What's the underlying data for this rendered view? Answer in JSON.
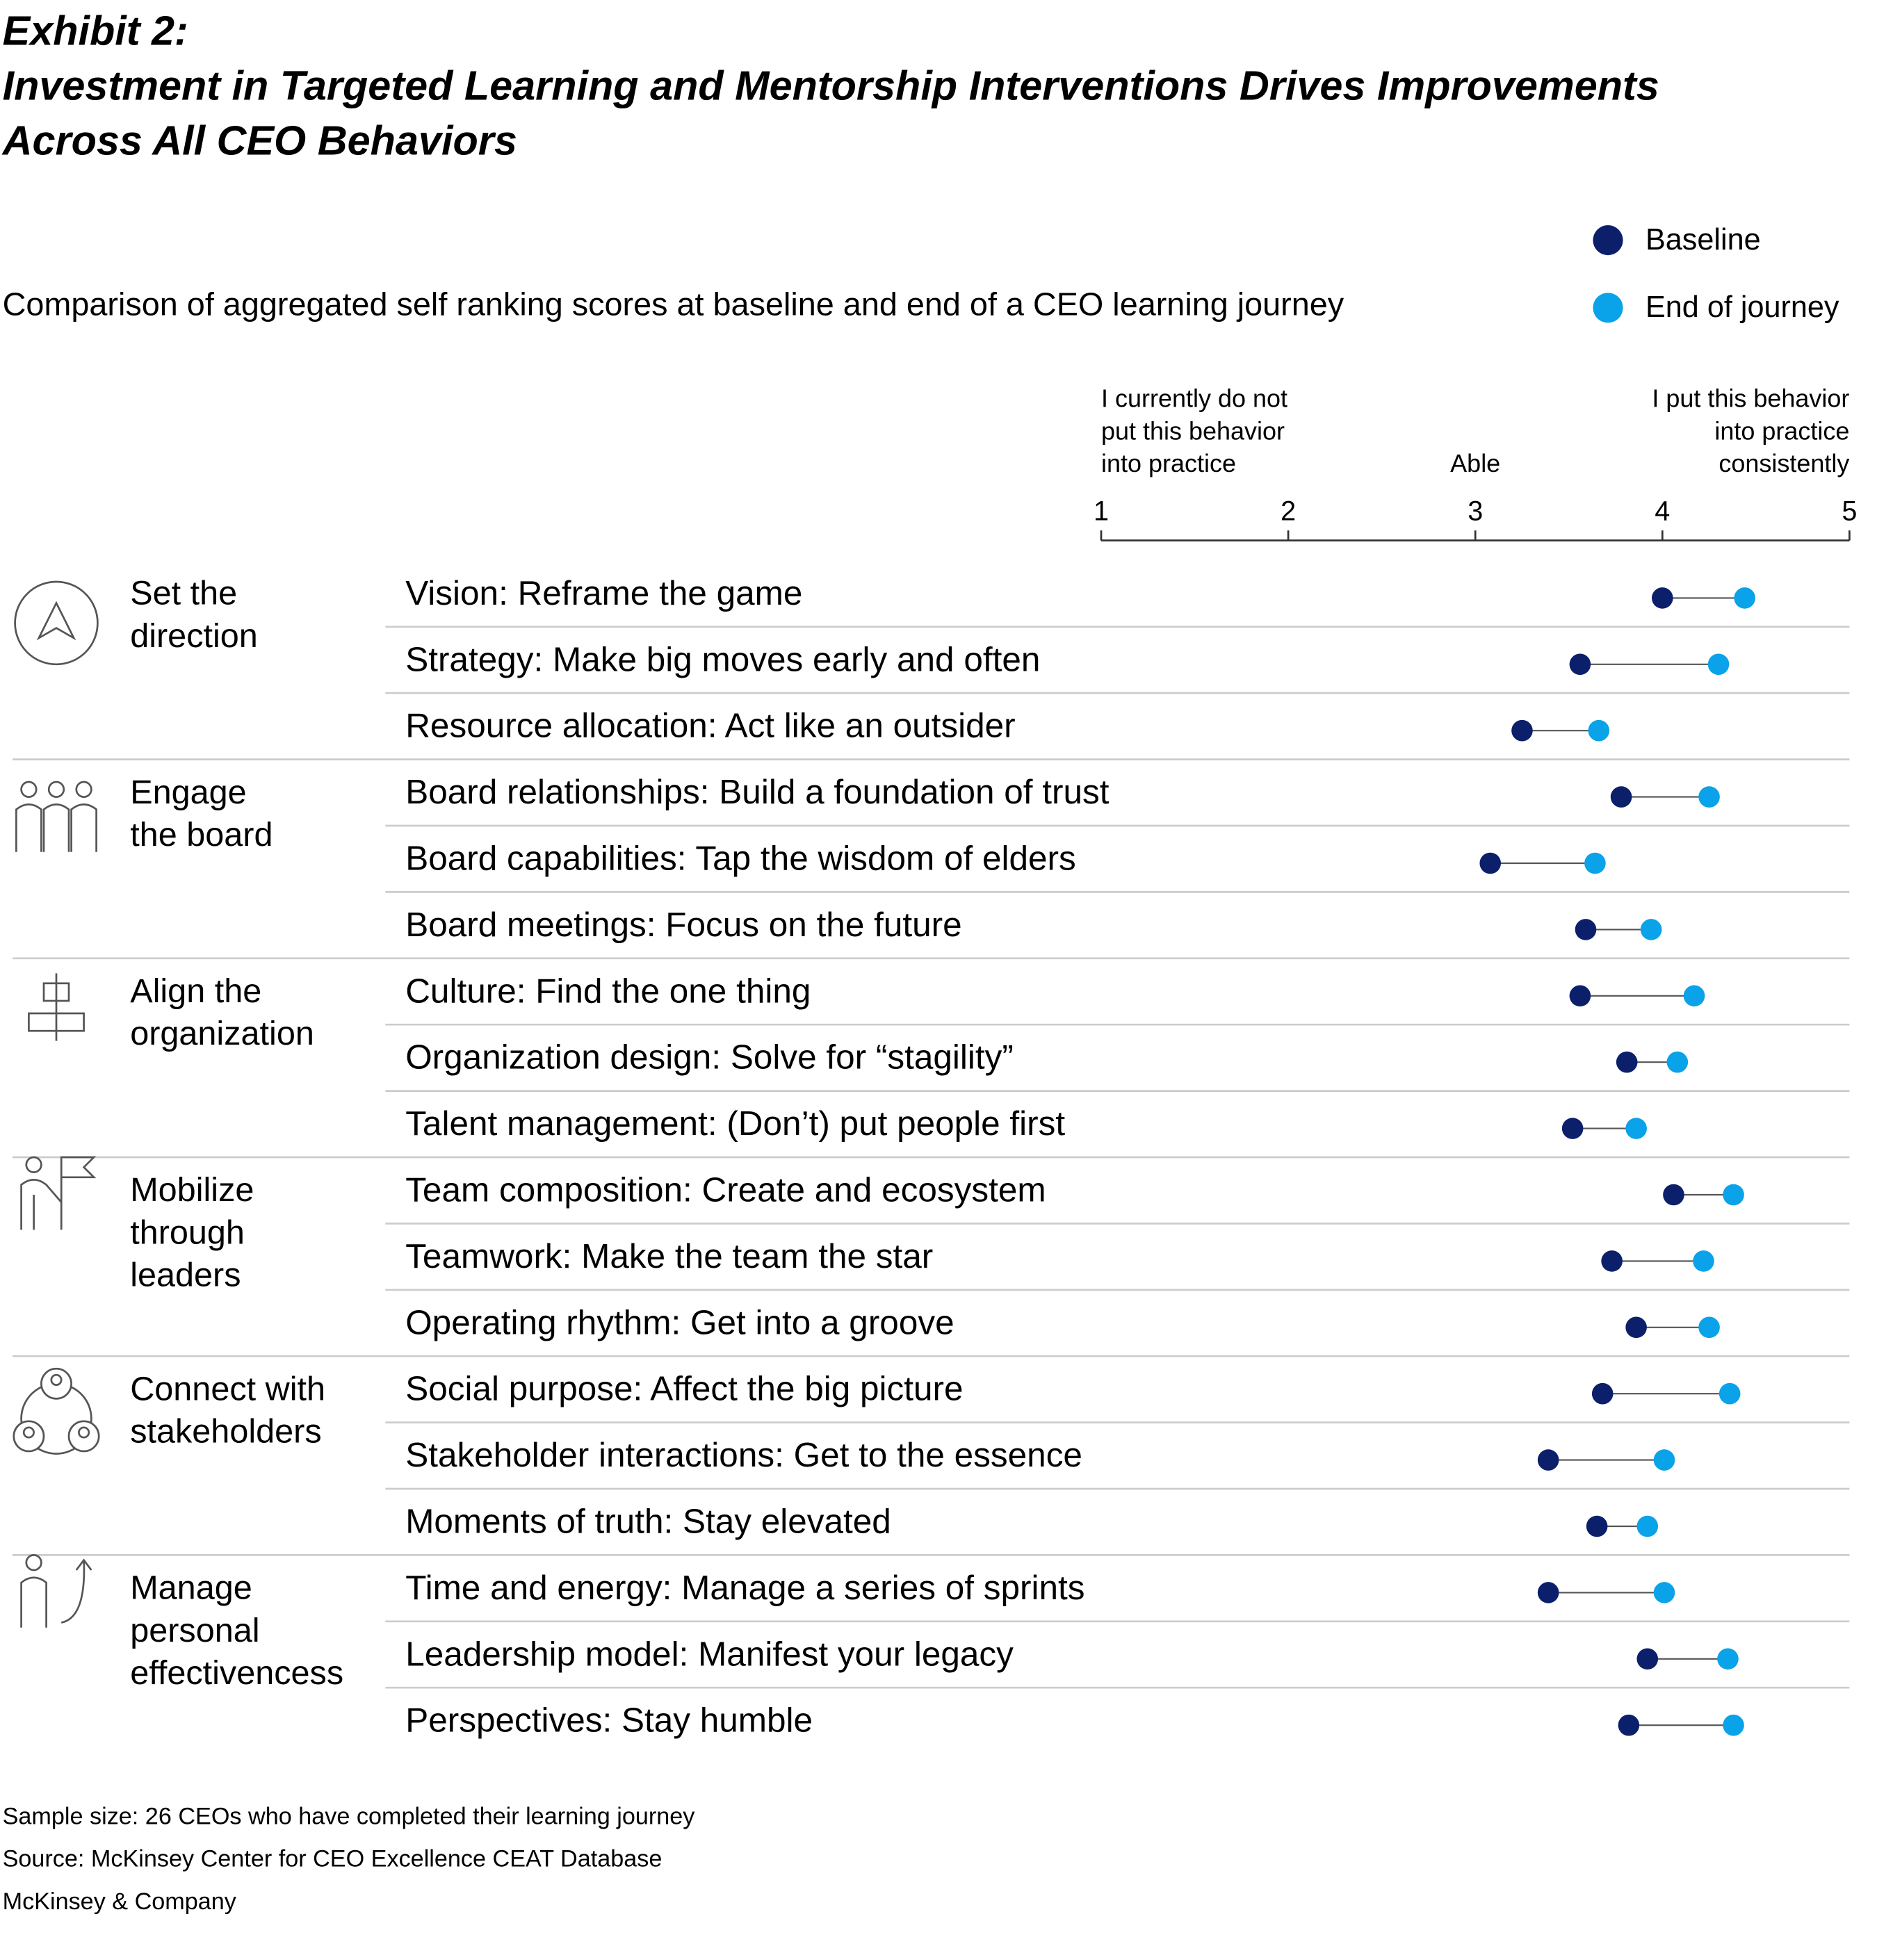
{
  "chart_data": {
    "type": "dumbbell",
    "title": [
      "Exhibit 2:",
      "Investment in Targeted Learning and Mentorship Interventions Drives Improvements",
      "Across All CEO Behaviors"
    ],
    "subtitle": "Comparison of aggregated self ranking scores at baseline and end of a CEO learning journey",
    "xlim": [
      1,
      5
    ],
    "xticks": [
      1,
      2,
      3,
      4,
      5
    ],
    "axis_annotations": [
      {
        "value": 1,
        "label": [
          "I currently do not",
          "put this behavior",
          "into practice"
        ]
      },
      {
        "value": 3,
        "label": [
          "Able"
        ]
      },
      {
        "value": 5,
        "label": [
          "I put this behavior",
          "into practice",
          "consistently"
        ]
      }
    ],
    "groups": [
      {
        "label": [
          "Set the",
          "direction"
        ],
        "categories": [
          "Vision: Reframe the game",
          "Strategy: Make big moves early and often",
          "Resource allocation: Act like an outsider"
        ]
      },
      {
        "label": [
          "Engage",
          "the board"
        ],
        "categories": [
          "Board relationships: Build a foundation of trust",
          "Board capabilities: Tap the wisdom of elders",
          "Board meetings: Focus on the future"
        ]
      },
      {
        "label": [
          "Align the",
          "organization"
        ],
        "categories": [
          "Culture: Find the one thing",
          "Organization design: Solve for “stagility”",
          "Talent management: (Don’t) put people first"
        ]
      },
      {
        "label": [
          "Mobilize",
          "through",
          "leaders"
        ],
        "categories": [
          "Team composition: Create and ecosystem",
          "Teamwork: Make the team the star",
          "Operating rhythm: Get into a groove"
        ]
      },
      {
        "label": [
          "Connect with",
          "stakeholders"
        ],
        "categories": [
          "Social purpose: Affect the big picture",
          "Stakeholder interactions: Get to the essence",
          "Moments of truth: Stay elevated"
        ]
      },
      {
        "label": [
          "Manage",
          "personal",
          "effectivencess"
        ],
        "categories": [
          "Time and energy: Manage a series of sprints",
          "Leadership model: Manifest your legacy",
          "Perspectives: Stay humble"
        ]
      }
    ],
    "series": [
      {
        "name": "Baseline",
        "color": "#0b1f6b",
        "values": [
          4.0,
          3.56,
          3.25,
          3.78,
          3.08,
          3.59,
          3.56,
          3.81,
          3.52,
          4.06,
          3.73,
          3.86,
          3.68,
          3.39,
          3.65,
          3.39,
          3.92,
          3.82
        ]
      },
      {
        "name": "End of journey",
        "color": "#0aa2e8",
        "values": [
          4.44,
          4.3,
          3.66,
          4.25,
          3.64,
          3.94,
          4.17,
          4.08,
          3.86,
          4.38,
          4.22,
          4.25,
          4.36,
          4.01,
          3.92,
          4.01,
          4.35,
          4.38
        ]
      }
    ],
    "notes": [
      "Sample size: 26 CEOs who have completed their learning journey",
      "Source: McKinsey Center for CEO Excellence CEAT Database",
      "McKinsey & Company"
    ]
  }
}
